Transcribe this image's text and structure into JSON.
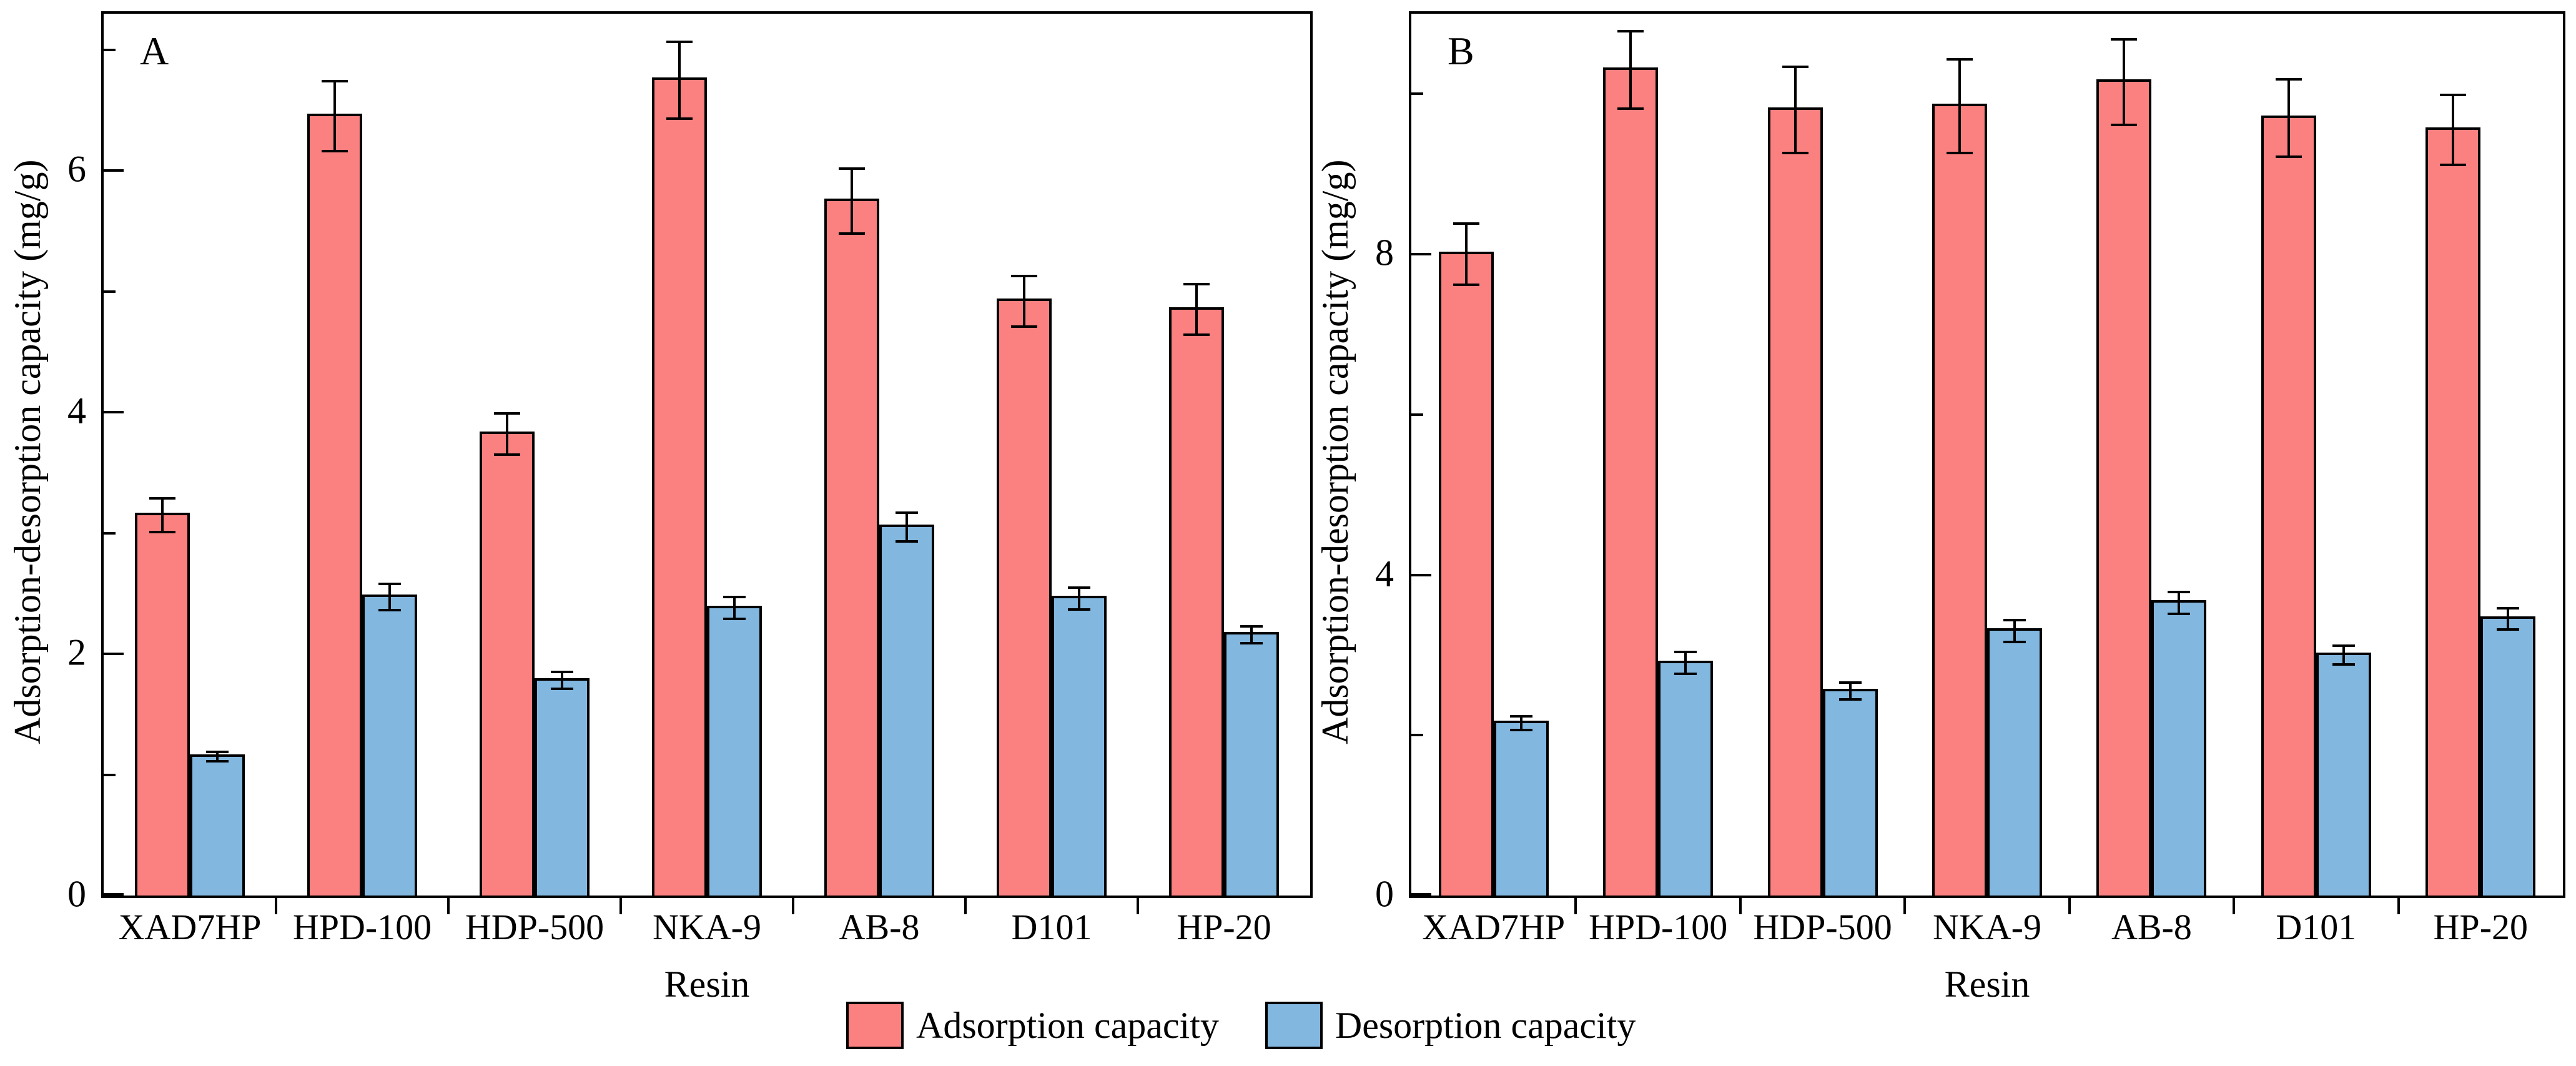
{
  "figure": {
    "background": "#ffffff",
    "text_color": "#000000",
    "axis_color": "#000000"
  },
  "legend": {
    "items": [
      {
        "label": "Adsorption capacity",
        "color": "#FB8080"
      },
      {
        "label": "Desorption capacity",
        "color": "#82B7DF"
      }
    ]
  },
  "chart_data": [
    {
      "type": "bar",
      "panel_label": "A",
      "xlabel": "Resin",
      "ylabel": "Adsorption-desorption capacity (mg/g)",
      "categories": [
        "XAD7HP",
        "HPD-100",
        "HDP-500",
        "NKA-9",
        "AB-8",
        "D101",
        "HP-20"
      ],
      "series": [
        {
          "name": "Adsorption capacity",
          "color": "#FB8080",
          "values": [
            3.15,
            6.45,
            3.82,
            6.75,
            5.75,
            4.92,
            4.85
          ],
          "errors": [
            0.15,
            0.3,
            0.18,
            0.33,
            0.28,
            0.22,
            0.22
          ]
        },
        {
          "name": "Desorption capacity",
          "color": "#82B7DF",
          "values": [
            1.15,
            2.47,
            1.78,
            2.38,
            3.05,
            2.46,
            2.16
          ],
          "errors": [
            0.05,
            0.12,
            0.08,
            0.1,
            0.13,
            0.1,
            0.08
          ]
        }
      ],
      "ylim": [
        0,
        7.3
      ],
      "yticks_major": [
        0,
        2,
        4,
        6
      ],
      "yticks_minor": [
        1,
        3,
        5,
        7
      ],
      "grid": false,
      "legend_position": "bottom-center-shared"
    },
    {
      "type": "bar",
      "panel_label": "B",
      "xlabel": "Resin",
      "ylabel": "Adsorption-desorption capacity (mg/g)",
      "categories": [
        "XAD7HP",
        "HPD-100",
        "HDP-500",
        "NKA-9",
        "AB-8",
        "D101",
        "HP-20"
      ],
      "series": [
        {
          "name": "Adsorption capacity",
          "color": "#FB8080",
          "values": [
            8.0,
            10.3,
            9.8,
            9.85,
            10.15,
            9.7,
            9.55
          ],
          "errors": [
            0.4,
            0.5,
            0.55,
            0.6,
            0.55,
            0.5,
            0.45
          ]
        },
        {
          "name": "Desorption capacity",
          "color": "#82B7DF",
          "values": [
            2.15,
            2.9,
            2.55,
            3.3,
            3.65,
            3.0,
            3.45
          ],
          "errors": [
            0.1,
            0.15,
            0.12,
            0.15,
            0.15,
            0.13,
            0.15
          ]
        }
      ],
      "ylim": [
        0,
        11
      ],
      "yticks_major": [
        0,
        4,
        8
      ],
      "yticks_minor": [
        2,
        6,
        10
      ],
      "grid": false,
      "legend_position": "bottom-center-shared"
    }
  ]
}
